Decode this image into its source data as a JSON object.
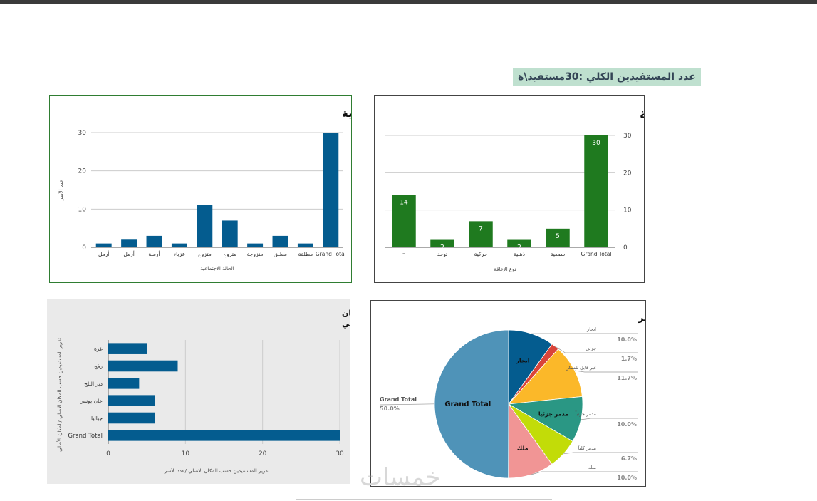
{
  "summary_label": "عدد المستفيدين الكلي :30مستفيد\\ة",
  "watermark": "خمسات",
  "colors": {
    "green": "#1f7a1f",
    "blue": "#045c8f",
    "frame_green": "#2f7d32"
  },
  "chart_data": [
    {
      "id": "marital",
      "type": "bar",
      "title": "عدد الأسر vs الحالة الاجتماعية",
      "xlabel": "الحالة الاجتماعية",
      "ylabel": "عدد الأسر",
      "categories": [
        "أرمل",
        "أرمل",
        "أرملة",
        "عزباء",
        "متزوج",
        "متزوج",
        "متزوجة",
        "مطلق",
        "مطلقة",
        "Grand Total"
      ],
      "values": [
        1,
        2,
        3,
        1,
        11,
        7,
        1,
        3,
        1,
        30
      ],
      "yticks": [
        0,
        10,
        20,
        30
      ],
      "ylim": [
        0,
        30
      ],
      "color": "#045c8f"
    },
    {
      "id": "disability",
      "type": "bar",
      "title": "عدد الأسر vs نوع الإعاقة",
      "xlabel": "نوع الإعاقة",
      "categories": [
        "-",
        "توحد",
        "حركية",
        "ذهنية",
        "سمعية",
        "Grand Total"
      ],
      "values": [
        14,
        2,
        7,
        2,
        5,
        30
      ],
      "data_labels": [
        "14",
        "2",
        "7",
        "2",
        "5",
        "30"
      ],
      "yticks": [
        0,
        10,
        20,
        30
      ],
      "ylim": [
        0,
        30
      ],
      "color": "#1f7a1f"
    },
    {
      "id": "origin",
      "type": "bar",
      "orientation": "horizontal",
      "title_line1": "تقرير المستفيدين حسب المكان الاصلي /عدد الأسر vs تقرير المستفيدين حسب المكان",
      "title_line2": "الاصلي /المكان الأصلي",
      "xlabel": "تقرير المستفيدين حسب المكان الاصلي /عدد الأسر",
      "ylabel": "تقرير المستفيدين حسب المكان الاصلي /المكان الأصلي",
      "categories": [
        "غزة",
        "رفح",
        "دير البلح",
        "خان يونس",
        "جباليا",
        "Grand Total"
      ],
      "values": [
        5,
        9,
        4,
        6,
        6,
        30
      ],
      "xticks": [
        0,
        10,
        20,
        30
      ],
      "xlim": [
        0,
        30
      ],
      "color": "#045c8f"
    },
    {
      "id": "damage",
      "type": "pie",
      "title": "تقرير المستفيدين حسب نوع الضرر بالمسكن \\عدد الأسر",
      "slices": [
        {
          "label": "ايجار",
          "inner": "ايجار",
          "value": 10.0,
          "pct": "10.0%",
          "color": "#045c8f"
        },
        {
          "label": "جزئي",
          "inner": "",
          "value": 1.7,
          "pct": "1.7%",
          "color": "#d9443a"
        },
        {
          "label": "غير قابل للسكن",
          "inner": "",
          "value": 11.7,
          "pct": "11.7%",
          "color": "#fbb829"
        },
        {
          "label": "مدمر جزئياً",
          "inner": "مدمر جزئيا",
          "value": 10.0,
          "pct": "10.0%",
          "color": "#2a9784"
        },
        {
          "label": "مدمر كلياً",
          "inner": "",
          "value": 6.7,
          "pct": "6.7%",
          "color": "#c2dc08"
        },
        {
          "label": "ملك",
          "inner": "ملك",
          "value": 10.0,
          "pct": "10.0%",
          "color": "#f19595"
        },
        {
          "label": "Grand Total",
          "inner": "Grand Total",
          "value": 50.0,
          "pct": "50.0%",
          "color": "#4f93b8"
        }
      ]
    }
  ]
}
